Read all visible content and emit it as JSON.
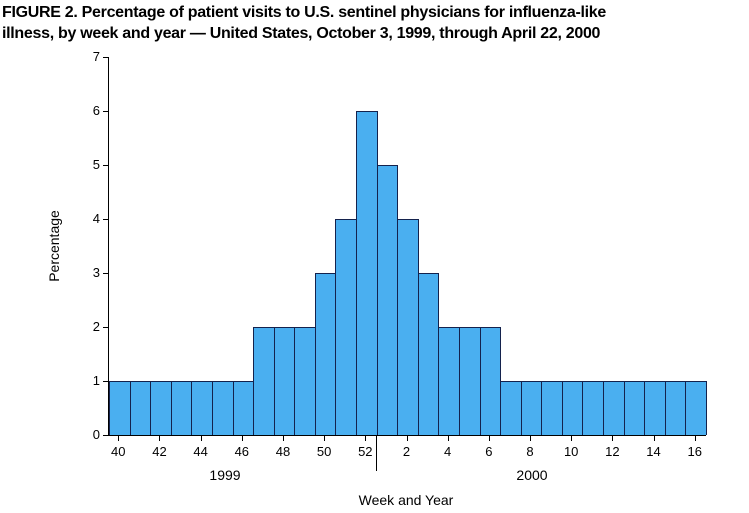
{
  "title": {
    "line1": "FIGURE 2. Percentage of patient visits to U.S. sentinel physicians for influenza-like",
    "line2": "illness, by week and year — United States, October 3, 1999, through April 22, 2000"
  },
  "chart_data": {
    "type": "bar",
    "title": "FIGURE 2. Percentage of patient visits to U.S. sentinel physicians for influenza-like illness, by week and year — United States, October 3, 1999, through April 22, 2000",
    "xlabel": "Week and Year",
    "ylabel": "Percentage",
    "ylim": [
      0,
      7
    ],
    "yticks": [
      0,
      1,
      2,
      3,
      4,
      5,
      6,
      7
    ],
    "weeks": [
      40,
      41,
      42,
      43,
      44,
      45,
      46,
      47,
      48,
      49,
      50,
      51,
      52,
      1,
      2,
      3,
      4,
      5,
      6,
      7,
      8,
      9,
      10,
      11,
      12,
      13,
      14,
      15,
      16
    ],
    "values": [
      1,
      1,
      1,
      1,
      1,
      1,
      1,
      2,
      2,
      2,
      3,
      4,
      6,
      5,
      4,
      3,
      2,
      2,
      2,
      1,
      1,
      1,
      1,
      1,
      1,
      1,
      1,
      1,
      1
    ],
    "weeks_in_1999": 13,
    "xtick_label_every": 2,
    "xtick_labels_shown": [
      "40",
      "42",
      "44",
      "46",
      "48",
      "50",
      "52",
      "2",
      "4",
      "6",
      "8",
      "10",
      "12",
      "14",
      "16"
    ],
    "year_labels": [
      "1999",
      "2000"
    ],
    "grid": false,
    "legend": "none",
    "bar_color": "#4aaff0",
    "bar_border_color": "#14224d",
    "axis_color": "#000000"
  }
}
